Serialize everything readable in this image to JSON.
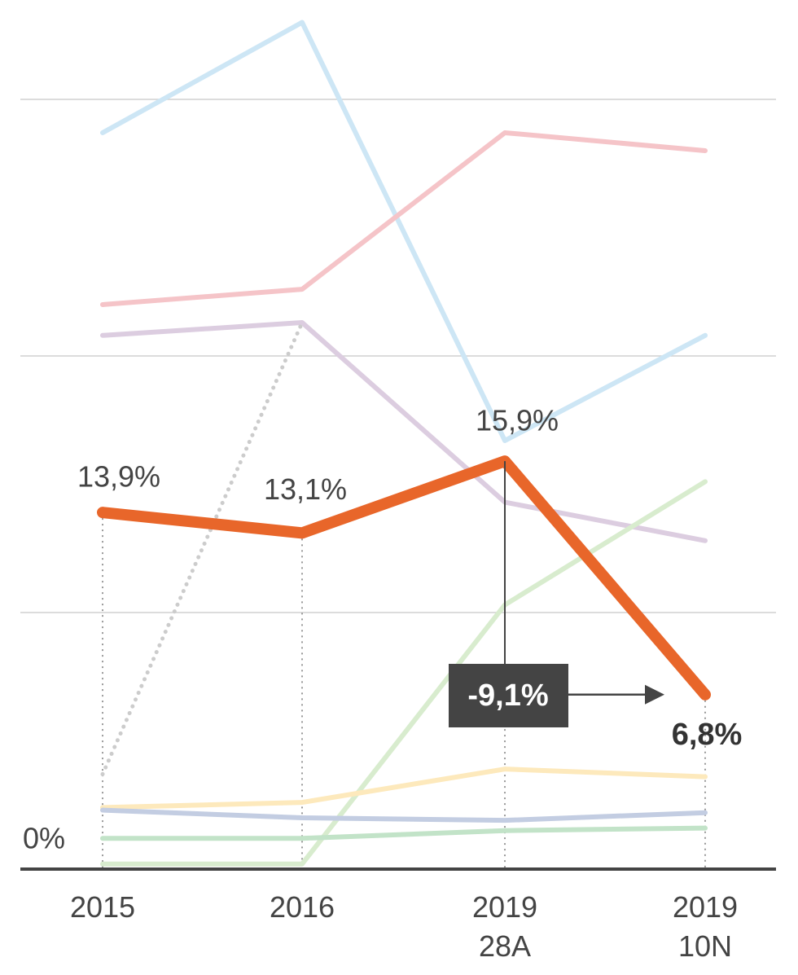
{
  "chart_data": {
    "type": "line",
    "categories": [
      "2015",
      "2016",
      "2019 28A",
      "2019 10N"
    ],
    "ylim": [
      0,
      33
    ],
    "yticks": [
      {
        "value": 0,
        "label": "0%"
      }
    ],
    "grid_lines": [
      10,
      20,
      30
    ],
    "series": [
      {
        "color": "#cde6f5",
        "values": [
          28.7,
          33.0,
          16.7,
          20.8
        ]
      },
      {
        "color": "#f5c4c8",
        "values": [
          22.0,
          22.6,
          28.7,
          28.0
        ]
      },
      {
        "color": "#dccde0",
        "values": [
          20.8,
          21.3,
          14.3,
          12.8
        ]
      },
      {
        "color": "#cccccc",
        "dotted": true,
        "values": [
          3.7,
          21.3,
          null,
          null
        ]
      },
      {
        "color": "#d8ecce",
        "values": [
          0.2,
          0.2,
          10.3,
          15.1
        ]
      },
      {
        "color": "#fde9bc",
        "values": [
          2.4,
          2.6,
          3.9,
          3.6
        ]
      },
      {
        "color": "#c3cde2",
        "values": [
          2.3,
          2.0,
          1.9,
          2.2
        ]
      },
      {
        "color": "#c2e3c8",
        "values": [
          1.2,
          1.2,
          1.5,
          1.6
        ]
      },
      {
        "color": "#e8662a",
        "highlight": true,
        "values": [
          13.9,
          13.1,
          15.9,
          6.8
        ],
        "value_labels": [
          "13,9%",
          "13,1%",
          "15,9%",
          "6,8%"
        ]
      }
    ],
    "annotation": "-9,1%"
  }
}
